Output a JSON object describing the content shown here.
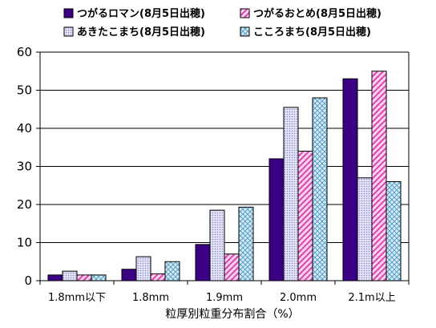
{
  "chart_data": {
    "type": "bar",
    "categories": [
      "1.8mm以下",
      "1.8mm",
      "1.9mm",
      "2.0mm",
      "2.1m以上"
    ],
    "series": [
      {
        "name": "つがるロマン(8月5日出穂)",
        "values": [
          1.5,
          3,
          9.5,
          32,
          53
        ],
        "color": "#3b0083",
        "pattern": "solid"
      },
      {
        "name": "あきたこまち(8月5日出穂)",
        "values": [
          2.5,
          6.3,
          18.5,
          45.5,
          27
        ],
        "color": "#c8c8f0",
        "pattern": "dots"
      },
      {
        "name": "つがるおとめ(8月5日出穂)",
        "values": [
          1.5,
          1.8,
          7,
          34,
          55
        ],
        "color": "#ff66cc",
        "pattern": "diagonal"
      },
      {
        "name": "こころまち(8月5日出穂)",
        "values": [
          1.5,
          5,
          19.3,
          48,
          26
        ],
        "color": "#aad6ee",
        "pattern": "crosshatch"
      }
    ],
    "yticks": [
      0,
      10,
      20,
      30,
      40,
      50,
      60
    ],
    "ylim": [
      0,
      60
    ],
    "xlabel": "粒厚別粒重分布割合（%）",
    "ylabel": "",
    "title": "",
    "grid": true,
    "legend_position": "top"
  }
}
